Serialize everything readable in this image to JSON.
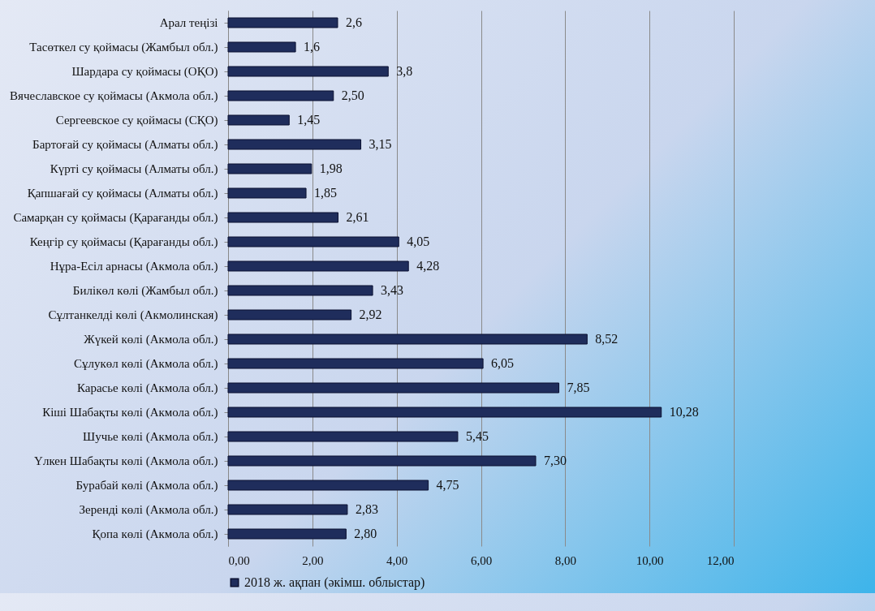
{
  "chart_data": {
    "type": "bar",
    "orientation": "horizontal",
    "categories": [
      "Арал теңізі",
      "Тасөткел су қоймасы (Жамбыл обл.)",
      "Шардара су қоймасы (ОҚО)",
      "Вячеславское су қоймасы (Акмола обл.)",
      "Сергеевское су қоймасы (СҚО)",
      "Бартоғай су қоймасы (Алматы обл.)",
      "Күрті су қоймасы (Алматы обл.)",
      "Қапшағай су қоймасы (Алматы обл.)",
      "Самарқан су қоймасы (Қарағанды обл.)",
      "Кеңгір  су қоймасы (Қарағанды обл.)",
      "Нұра-Есіл арнасы (Акмола обл.)",
      "Билікөл  көлі  (Жамбыл обл.)",
      "Сұлтанкелді көлі (Акмолинская)",
      "Жүкей көлі  (Акмола обл.)",
      "Сұлукөл  көлі  (Акмола обл.)",
      "Карасье  көлі (Акмола обл.)",
      "Кіші  Шабақты  көлі (Акмола обл.)",
      "Шучье  көлі  (Акмола обл.)",
      "Үлкен Шабақты  көлі  (Акмола обл.)",
      "Бурабай  көлі  (Акмола обл.)",
      "Зеренді  көлі  (Акмола обл.)",
      "Қопа көлі  (Акмола обл.)"
    ],
    "series": [
      {
        "name": "2018 ж. ақпан  (әкімш. облыстар)",
        "color": "#1f2d5c",
        "values": [
          2.6,
          1.6,
          3.8,
          2.5,
          1.45,
          3.15,
          1.98,
          1.85,
          2.61,
          4.05,
          4.28,
          3.43,
          2.92,
          8.52,
          6.05,
          7.85,
          10.28,
          5.45,
          7.3,
          4.75,
          2.83,
          2.8
        ],
        "value_labels": [
          "2,6",
          "1,6",
          "3,8",
          "2,50",
          "1,45",
          "3,15",
          "1,98",
          "1,85",
          "2,61",
          "4,05",
          "4,28",
          "3,43",
          "2,92",
          "8,52",
          "6,05",
          "7,85",
          "10,28",
          "5,45",
          "7,30",
          "4,75",
          "2,83",
          "2,80"
        ]
      }
    ],
    "xlim": [
      0,
      12
    ],
    "xticks": [
      {
        "value": 0,
        "label": "0,00"
      },
      {
        "value": 2,
        "label": "2,00"
      },
      {
        "value": 4,
        "label": "4,00"
      },
      {
        "value": 6,
        "label": "6,00"
      },
      {
        "value": 8,
        "label": "8,00"
      },
      {
        "value": 10,
        "label": "10,00"
      },
      {
        "value": 12,
        "label": "12,00"
      }
    ],
    "grid": "x",
    "legend": "bottom"
  }
}
